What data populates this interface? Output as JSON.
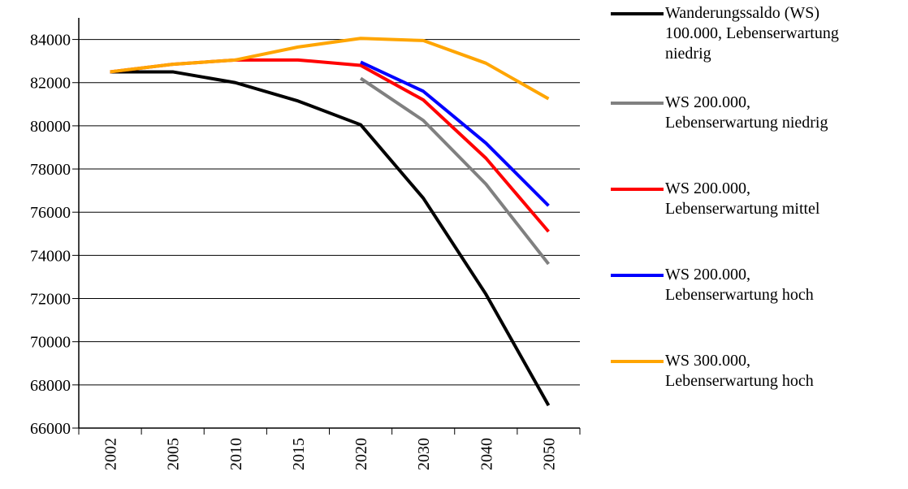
{
  "chart_data": {
    "type": "line",
    "categories": [
      "2002",
      "2005",
      "2010",
      "2015",
      "2020",
      "2030",
      "2040",
      "2050"
    ],
    "series": [
      {
        "name": "Wanderungssaldo (WS) 100.000, Lebenserwartung niedrig",
        "color": "#000000",
        "values": [
          82500,
          82500,
          82000,
          81150,
          80050,
          76650,
          72200,
          67050
        ]
      },
      {
        "name": "WS 200.000, Lebenserwartung niedrig",
        "color": "#808080",
        "values": [
          null,
          null,
          null,
          null,
          82200,
          80250,
          77300,
          73600
        ]
      },
      {
        "name": "WS 200.000, Lebenserwartung mittel",
        "color": "#ff0000",
        "values": [
          82500,
          82850,
          83050,
          83050,
          82800,
          81200,
          78500,
          75100
        ]
      },
      {
        "name": "WS 200.000, Lebenserwartung hoch",
        "color": "#0000ff",
        "values": [
          null,
          null,
          null,
          null,
          82950,
          81600,
          79200,
          76300
        ]
      },
      {
        "name": "WS 300.000, Lebenserwartung hoch",
        "color": "#ffa500",
        "values": [
          82500,
          82850,
          83050,
          83650,
          84050,
          83950,
          82900,
          81250
        ]
      }
    ],
    "ylim": [
      66000,
      85000
    ],
    "yticks": [
      66000,
      68000,
      70000,
      72000,
      74000,
      76000,
      78000,
      80000,
      82000,
      84000
    ],
    "grid": true
  }
}
